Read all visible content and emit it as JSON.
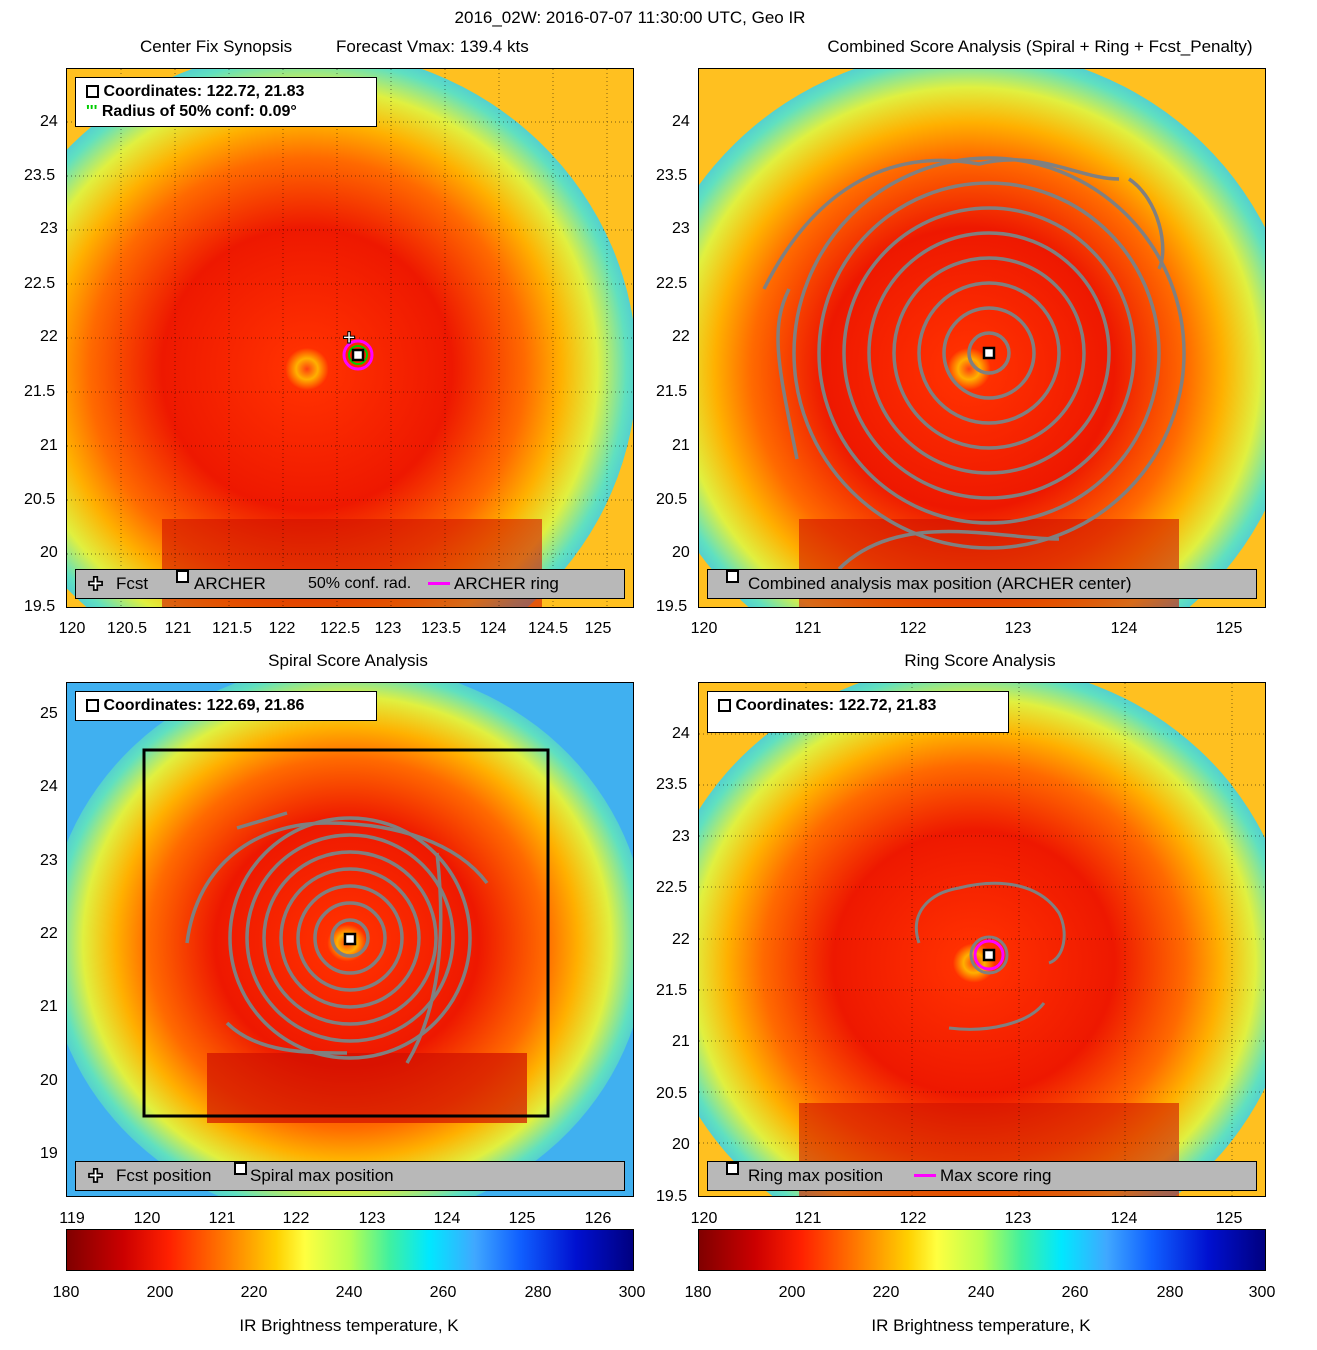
{
  "figure": {
    "suptitle": "2016_02W: 2016-07-07 11:30:00 UTC, Geo IR",
    "colorbar_label": "IR Brightness temperature, K",
    "colorbar_ticks": [
      "180",
      "200",
      "220",
      "240",
      "260",
      "280",
      "300"
    ]
  },
  "panels": {
    "tl": {
      "title_left": "Center Fix Synopsis",
      "title_right": "Forecast Vmax: 139.4 kts",
      "coords": "Coordinates: 122.72, 21.83",
      "radius": "Radius of 50% conf: 0.09°",
      "leg_fcst": "Fcst",
      "leg_archer": "ARCHER",
      "leg_conf": "50% conf. rad.",
      "leg_ring": "ARCHER ring",
      "xticks": [
        "120",
        "120.5",
        "121",
        "121.5",
        "122",
        "122.5",
        "123",
        "123.5",
        "124",
        "124.5",
        "125"
      ],
      "yticks": [
        "24",
        "23.5",
        "23",
        "22.5",
        "22",
        "21.5",
        "21",
        "20.5",
        "20",
        "19.5"
      ]
    },
    "tr": {
      "title": "Combined Score Analysis (Spiral + Ring + Fcst_Penalty)",
      "leg": "Combined analysis max position (ARCHER center)",
      "xticks": [
        "120",
        "121",
        "122",
        "123",
        "124",
        "125"
      ],
      "yticks": [
        "24",
        "23.5",
        "23",
        "22.5",
        "22",
        "21.5",
        "21",
        "20.5",
        "20",
        "19.5"
      ]
    },
    "bl": {
      "title": "Spiral Score Analysis",
      "coords": "Coordinates: 122.69, 21.86",
      "leg_fcst": "Fcst position",
      "leg_spiral": "Spiral max position",
      "xticks": [
        "119",
        "120",
        "121",
        "122",
        "123",
        "124",
        "125",
        "126"
      ],
      "yticks": [
        "25",
        "24",
        "23",
        "22",
        "21",
        "20",
        "19"
      ]
    },
    "br": {
      "title": "Ring Score Analysis",
      "coords": "Coordinates: 122.72, 21.83",
      "leg_ring_pos": "Ring max position",
      "leg_score_ring": "Max score ring",
      "xticks": [
        "120",
        "121",
        "122",
        "123",
        "124",
        "125"
      ],
      "yticks": [
        "24",
        "23.5",
        "23",
        "22.5",
        "22",
        "21.5",
        "21",
        "20.5",
        "20",
        "19.5"
      ]
    }
  },
  "chart_data": [
    {
      "type": "heatmap",
      "title": "Center Fix Synopsis",
      "xlim": [
        120,
        125.3
      ],
      "ylim": [
        19.5,
        24.5
      ],
      "center": [
        122.72,
        21.83
      ],
      "fcst": [
        122.63,
        21.95
      ],
      "radius_50pct_deg": 0.09
    },
    {
      "type": "heatmap",
      "title": "Combined Score Analysis (Spiral + Ring + Fcst_Penalty)",
      "xlim": [
        120,
        125.3
      ],
      "ylim": [
        19.5,
        24.5
      ],
      "center": [
        122.72,
        21.83
      ]
    },
    {
      "type": "heatmap",
      "title": "Spiral Score Analysis",
      "xlim": [
        119,
        126.6
      ],
      "ylim": [
        18.6,
        25.6
      ],
      "center": [
        122.69,
        21.86
      ]
    },
    {
      "type": "heatmap",
      "title": "Ring Score Analysis",
      "xlim": [
        120,
        125.3
      ],
      "ylim": [
        19.5,
        24.5
      ],
      "center": [
        122.72,
        21.83
      ]
    }
  ],
  "colors": {
    "ring": "#ff00ff",
    "conf": "#00cc00",
    "contour": "#808080",
    "legend_bg": "#b8b8b8"
  }
}
